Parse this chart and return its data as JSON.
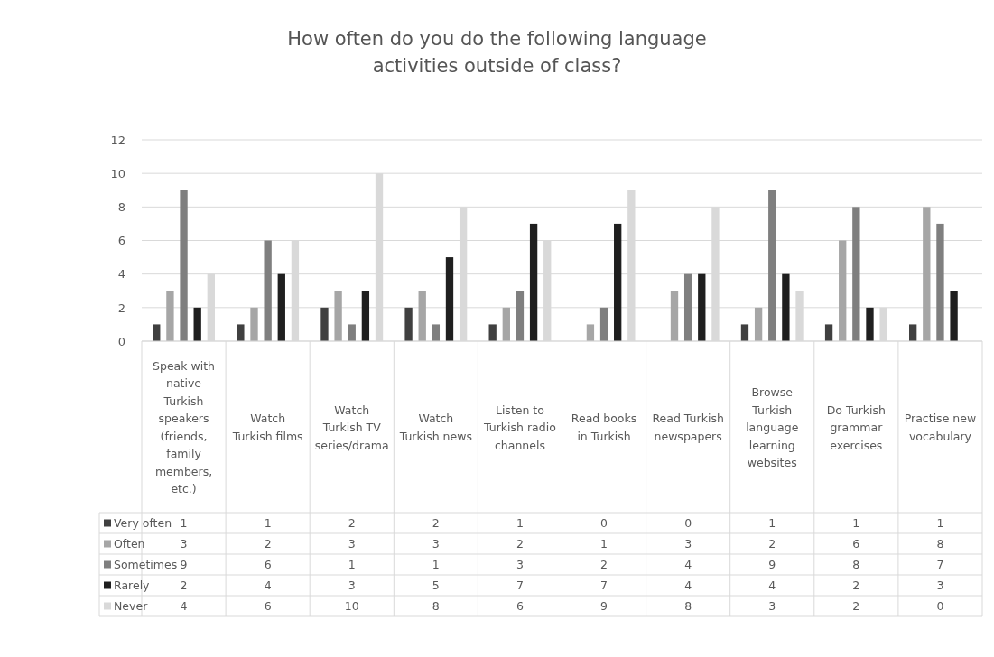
{
  "chart_data": {
    "type": "bar",
    "title": "How often do you do the following language activities outside of class?",
    "categories": [
      "Speak with native Turkish speakers (friends, family members, etc.)",
      "Watch Turkish films",
      "Watch Turkish TV series/drama",
      "Watch Turkish news",
      "Listen to Turkish radio channels",
      "Read books in Turkish",
      "Read Turkish newspapers",
      "Browse Turkish language learning websites",
      "Do Turkish grammar exercises",
      "Practise new vocabulary"
    ],
    "series": [
      {
        "name": "Very often",
        "color": "#404040",
        "values": [
          1,
          1,
          2,
          2,
          1,
          0,
          0,
          1,
          1,
          1
        ]
      },
      {
        "name": "Often",
        "color": "#a6a6a6",
        "values": [
          3,
          2,
          3,
          3,
          2,
          1,
          3,
          2,
          6,
          8
        ]
      },
      {
        "name": "Sometimes",
        "color": "#7f7f7f",
        "values": [
          9,
          6,
          1,
          1,
          3,
          2,
          4,
          9,
          8,
          7
        ]
      },
      {
        "name": "Rarely",
        "color": "#1f1f1f",
        "values": [
          2,
          4,
          3,
          5,
          7,
          7,
          4,
          4,
          2,
          3
        ]
      },
      {
        "name": "Never",
        "color": "#d9d9d9",
        "values": [
          4,
          6,
          10,
          8,
          6,
          9,
          8,
          3,
          2,
          0
        ]
      }
    ],
    "ylim": [
      0,
      12
    ],
    "yticks": [
      0,
      2,
      4,
      6,
      8,
      10,
      12
    ],
    "grid": "y",
    "legend": "bottom",
    "data_labels": true
  }
}
